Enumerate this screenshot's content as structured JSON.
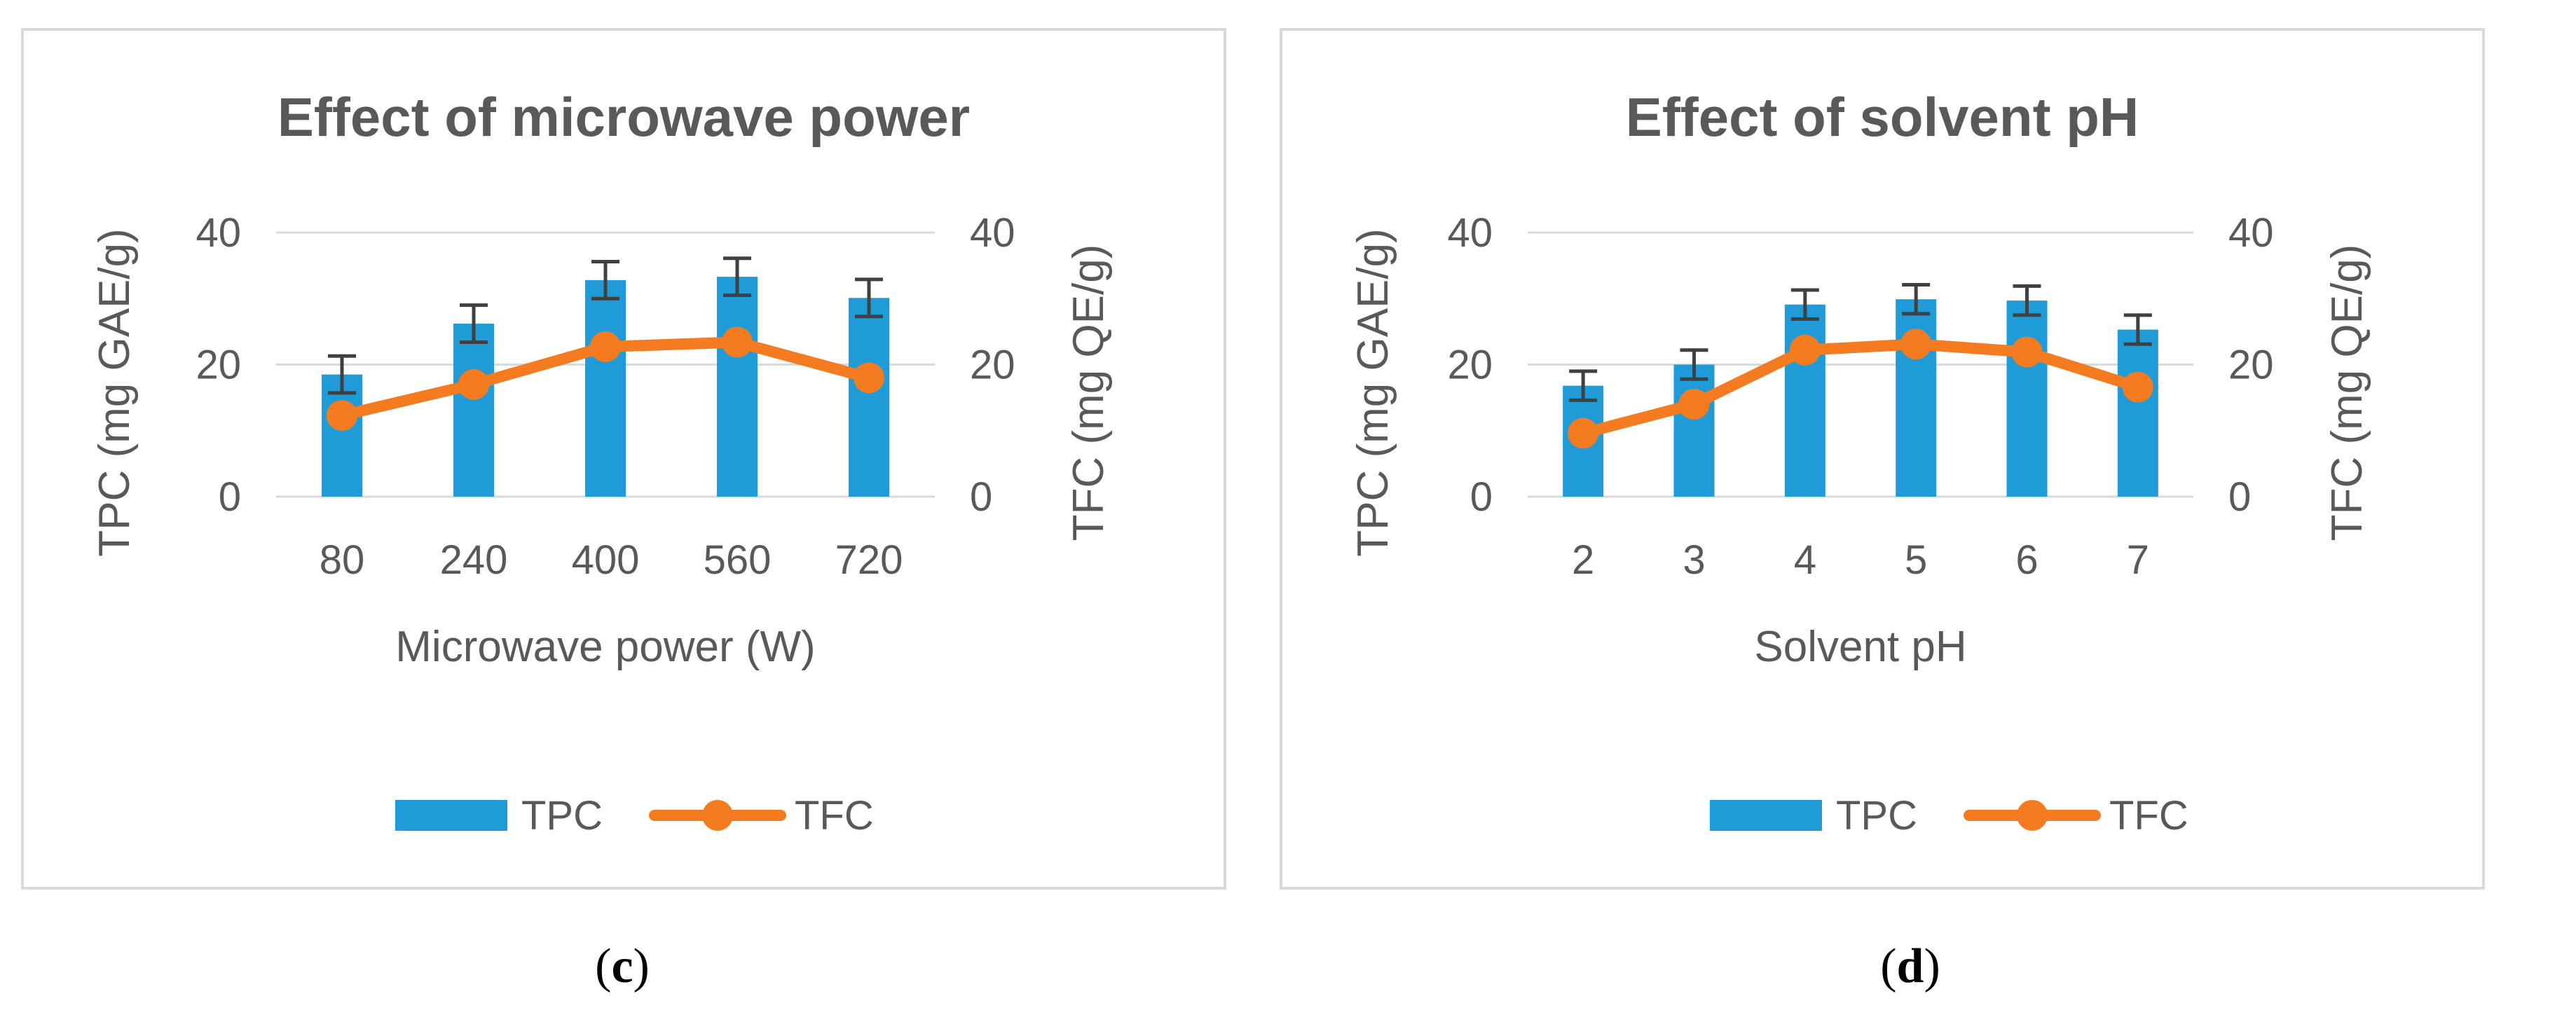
{
  "colors": {
    "bar": "#1f9bd7",
    "line": "#f47b20",
    "grid": "#d9d9d9",
    "error_bar": "#404040",
    "text": "#595959",
    "border": "#d9d9d9"
  },
  "captions": {
    "c": "c",
    "d": "d"
  },
  "chart_data": [
    {
      "type": "bar+line",
      "title": "Effect of microwave power",
      "xlabel": "Microwave power (W)",
      "ylabel_left": "TPC (mg GAE/g)",
      "ylabel_right": "TFC (mg QE/g)",
      "ylim_left": [
        0,
        40
      ],
      "ylim_right": [
        0,
        40
      ],
      "yticks_left": [
        0,
        20,
        40
      ],
      "yticks_right": [
        0,
        20,
        40
      ],
      "grid": true,
      "legend_position": "bottom",
      "categories": [
        "80",
        "240",
        "400",
        "560",
        "720"
      ],
      "series": [
        {
          "name": "TPC",
          "type": "bar",
          "axis": "left",
          "values": [
            18.5,
            26.2,
            32.8,
            33.3,
            30.1
          ],
          "error": [
            2.8,
            2.8,
            2.8,
            2.8,
            2.8
          ]
        },
        {
          "name": "TFC",
          "type": "line",
          "axis": "right",
          "values": [
            12.3,
            17.0,
            22.7,
            23.4,
            18.0
          ]
        }
      ]
    },
    {
      "type": "bar+line",
      "title": "Effect of solvent pH",
      "xlabel": "Solvent pH",
      "ylabel_left": "TPC (mg GAE/g)",
      "ylabel_right": "TFC (mg QE/g)",
      "ylim_left": [
        0,
        40
      ],
      "ylim_right": [
        0,
        40
      ],
      "yticks_left": [
        0,
        20,
        40
      ],
      "yticks_right": [
        0,
        20,
        40
      ],
      "grid": true,
      "legend_position": "bottom",
      "categories": [
        "2",
        "3",
        "4",
        "5",
        "6",
        "7"
      ],
      "series": [
        {
          "name": "TPC",
          "type": "bar",
          "axis": "left",
          "values": [
            16.8,
            20.0,
            29.1,
            29.9,
            29.7,
            25.3
          ],
          "error": [
            2.2,
            2.2,
            2.2,
            2.2,
            2.2,
            2.2
          ]
        },
        {
          "name": "TFC",
          "type": "line",
          "axis": "right",
          "values": [
            9.6,
            14.0,
            22.2,
            23.1,
            21.9,
            16.6
          ]
        }
      ]
    }
  ]
}
